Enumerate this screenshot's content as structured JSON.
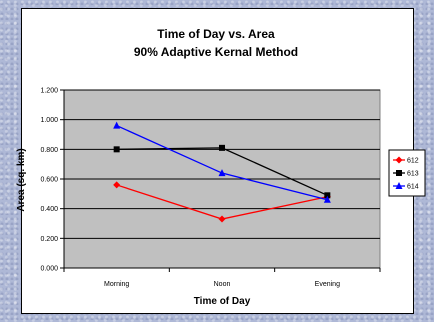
{
  "chart_data": {
    "type": "line",
    "title": "Time of Day vs. Area",
    "subtitle": "90% Adaptive Kernal Method",
    "xlabel": "Time of Day",
    "ylabel": "Area (sq. km)",
    "categories": [
      "Morning",
      "Noon",
      "Evening"
    ],
    "ylim": [
      0,
      1.2
    ],
    "yticks": [
      "0.000",
      "0.200",
      "0.400",
      "0.600",
      "0.800",
      "1.000",
      "1.200"
    ],
    "grid": true,
    "legend_position": "right",
    "plot_background": "#c0c0c0",
    "series": [
      {
        "name": "612",
        "values": [
          0.56,
          0.33,
          0.48
        ],
        "color": "#ff0000",
        "marker": "diamond"
      },
      {
        "name": "613",
        "values": [
          0.8,
          0.81,
          0.49
        ],
        "color": "#000000",
        "marker": "square"
      },
      {
        "name": "614",
        "values": [
          0.96,
          0.64,
          0.46
        ],
        "color": "#0000ff",
        "marker": "triangle"
      }
    ]
  }
}
